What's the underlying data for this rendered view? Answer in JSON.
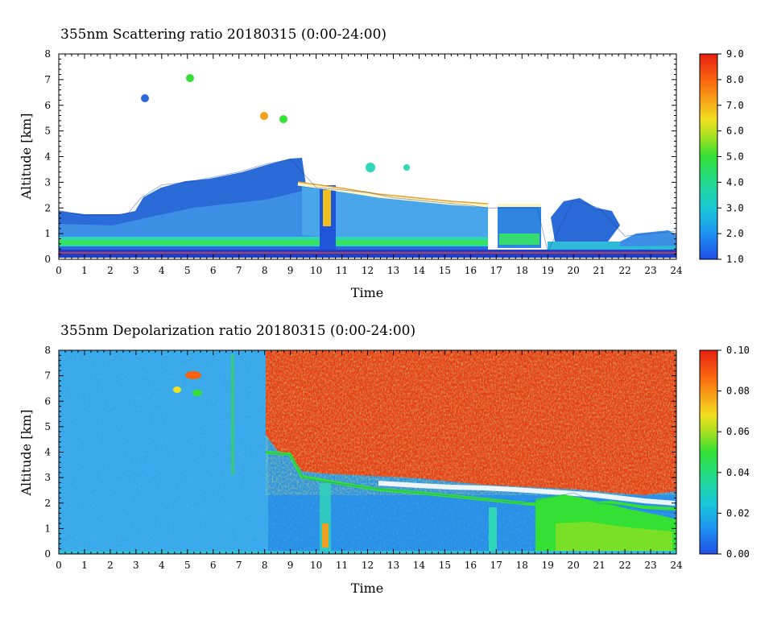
{
  "chart_data": [
    {
      "type": "heatmap",
      "title": "355nm Scattering ratio 20180315 (0:00-24:00)",
      "xlabel": "Time",
      "ylabel": "Altitude [km]",
      "xlim": [
        0,
        24
      ],
      "ylim": [
        0,
        8
      ],
      "x_ticks": [
        "0",
        "1",
        "2",
        "3",
        "4",
        "5",
        "6",
        "7",
        "8",
        "9",
        "10",
        "11",
        "12",
        "13",
        "14",
        "15",
        "16",
        "17",
        "18",
        "19",
        "20",
        "21",
        "22",
        "23",
        "24"
      ],
      "y_ticks": [
        "0",
        "1",
        "2",
        "3",
        "4",
        "5",
        "6",
        "7",
        "8"
      ],
      "colorbar_ticks": [
        "1.0",
        "2.0",
        "3.0",
        "4.0",
        "5.0",
        "6.0",
        "7.0",
        "8.0",
        "9.0"
      ],
      "colorbar_range": [
        1.0,
        9.0
      ],
      "cloud_top_km": [
        {
          "t": 0,
          "v": 1.9
        },
        {
          "t": 1,
          "v": 1.7
        },
        {
          "t": 2,
          "v": 1.7
        },
        {
          "t": 2.7,
          "v": 1.8
        },
        {
          "t": 3.2,
          "v": 2.4
        },
        {
          "t": 4,
          "v": 2.9
        },
        {
          "t": 5,
          "v": 3.0
        },
        {
          "t": 6,
          "v": 3.2
        },
        {
          "t": 7,
          "v": 3.4
        },
        {
          "t": 8,
          "v": 3.7
        },
        {
          "t": 9,
          "v": 3.9
        },
        {
          "t": 10,
          "v": 2.8
        },
        {
          "t": 11,
          "v": 2.7
        },
        {
          "t": 12,
          "v": 2.6
        },
        {
          "t": 13,
          "v": 2.4
        },
        {
          "t": 14,
          "v": 2.3
        },
        {
          "t": 15,
          "v": 2.2
        },
        {
          "t": 16,
          "v": 2.1
        },
        {
          "t": 16.7,
          "v": 2.0
        },
        {
          "t": 17,
          "v": 2.0
        },
        {
          "t": 18,
          "v": 2.0
        },
        {
          "t": 18.6,
          "v": 2.0
        },
        {
          "t": 19,
          "v": 0.3
        },
        {
          "t": 20,
          "v": 2.3
        },
        {
          "t": 21,
          "v": 2.0
        },
        {
          "t": 22,
          "v": 0.9
        },
        {
          "t": 23,
          "v": 1.0
        },
        {
          "t": 24,
          "v": 1.1
        }
      ]
    },
    {
      "type": "heatmap",
      "title": "355nm Depolarization ratio 20180315 (0:00-24:00)",
      "xlabel": "Time",
      "ylabel": "Altitude [km]",
      "xlim": [
        0,
        24
      ],
      "ylim": [
        0,
        8
      ],
      "x_ticks": [
        "0",
        "1",
        "2",
        "3",
        "4",
        "5",
        "6",
        "7",
        "8",
        "9",
        "10",
        "11",
        "12",
        "13",
        "14",
        "15",
        "16",
        "17",
        "18",
        "19",
        "20",
        "21",
        "22",
        "23",
        "24"
      ],
      "y_ticks": [
        "0",
        "1",
        "2",
        "3",
        "4",
        "5",
        "6",
        "7",
        "8"
      ],
      "colorbar_ticks": [
        "0.00",
        "0.02",
        "0.04",
        "0.06",
        "0.08",
        "0.10"
      ],
      "colorbar_range": [
        0.0,
        0.1
      ],
      "cloud_top_km": [
        {
          "t": 8,
          "v": 4.0
        },
        {
          "t": 9,
          "v": 3.9
        },
        {
          "t": 9.5,
          "v": 3.0
        },
        {
          "t": 10,
          "v": 2.9
        },
        {
          "t": 12,
          "v": 2.6
        },
        {
          "t": 14,
          "v": 2.4
        },
        {
          "t": 16,
          "v": 2.2
        },
        {
          "t": 17,
          "v": 2.1
        },
        {
          "t": 18,
          "v": 2.0
        },
        {
          "t": 19,
          "v": 2.2
        },
        {
          "t": 20,
          "v": 2.4
        },
        {
          "t": 21,
          "v": 2.0
        },
        {
          "t": 22,
          "v": 1.9
        },
        {
          "t": 23,
          "v": 1.7
        },
        {
          "t": 24,
          "v": 1.6
        }
      ]
    }
  ]
}
